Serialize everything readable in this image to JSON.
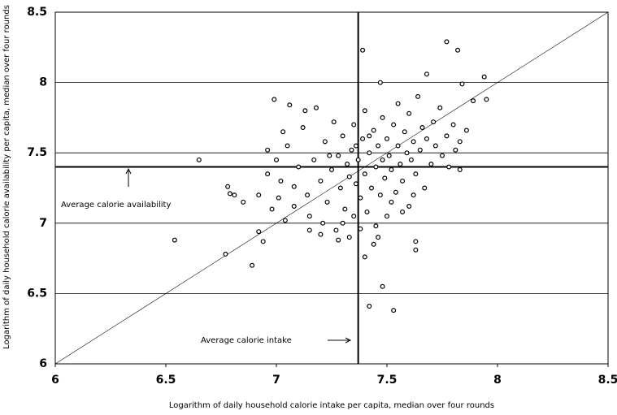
{
  "chart_data": {
    "type": "scatter",
    "x_label": "Logarithm of daily household calorie intake per capita, median over four rounds",
    "y_label": "Logarithm of daily household calorie availability per capita, median over four rounds",
    "annotations": [
      "Average calorie availability",
      "Average calorie intake"
    ],
    "xlim": [
      6,
      8.5
    ],
    "ylim": [
      6,
      8.5
    ],
    "xticks": [
      6,
      6.5,
      7,
      7.5,
      8,
      8.5
    ],
    "yticks": [
      6,
      6.5,
      7,
      7.5,
      8,
      8.5
    ],
    "grid": true,
    "diagonal": true,
    "vline": 7.37,
    "hline": 7.4,
    "color": "#000000",
    "x": [
      6.65,
      6.54,
      6.77,
      6.89,
      6.78,
      6.79,
      6.81,
      6.85,
      6.92,
      6.92,
      6.94,
      6.96,
      6.99,
      7.39,
      7.77,
      7.82,
      7.94,
      7.84,
      7.48,
      7.53,
      7.42,
      7.4,
      7.63,
      7.63,
      7.95,
      7.89,
      7.83,
      7.86,
      7.47,
      7.68,
      7.08,
      7.02,
      7.05,
      7.08,
      7.1,
      7.12,
      7.14,
      7.15,
      7.17,
      7.18,
      7.2,
      7.21,
      7.22,
      7.23,
      7.25,
      7.26,
      7.27,
      7.28,
      7.29,
      7.3,
      7.31,
      7.32,
      7.33,
      7.34,
      7.35,
      7.35,
      7.36,
      7.37,
      7.38,
      7.39,
      7.4,
      7.4,
      7.41,
      7.42,
      7.43,
      7.44,
      7.45,
      7.45,
      7.46,
      7.47,
      7.48,
      7.48,
      7.49,
      7.5,
      7.5,
      7.51,
      7.52,
      7.53,
      7.54,
      7.55,
      7.55,
      7.56,
      7.57,
      7.58,
      7.59,
      7.6,
      7.6,
      7.61,
      7.62,
      7.63,
      7.64,
      7.65,
      7.66,
      7.67,
      7.68,
      7.7,
      7.71,
      7.72,
      7.74,
      7.75,
      7.77,
      7.78,
      7.8,
      7.81,
      7.83,
      7.06,
      7.13,
      7.24,
      7.3,
      7.33,
      7.28,
      7.2,
      7.15,
      7.38,
      7.44,
      7.46,
      7.36,
      7.42,
      7.52,
      7.57,
      7.62,
      7.01,
      7.04,
      6.98,
      6.96,
      7.0,
      7.03
    ],
    "values": [
      7.45,
      6.88,
      6.78,
      6.7,
      7.26,
      7.21,
      7.2,
      7.15,
      7.2,
      6.94,
      6.87,
      7.52,
      7.88,
      8.23,
      8.29,
      8.23,
      8.04,
      7.99,
      6.55,
      6.38,
      6.41,
      6.76,
      6.87,
      6.81,
      7.88,
      7.87,
      7.38,
      7.66,
      8.0,
      8.06,
      7.26,
      7.3,
      7.55,
      7.12,
      7.4,
      7.68,
      7.2,
      7.05,
      7.45,
      7.82,
      7.3,
      7.0,
      7.58,
      7.15,
      7.38,
      7.72,
      6.95,
      7.48,
      7.25,
      7.62,
      7.1,
      7.42,
      7.33,
      7.52,
      7.05,
      7.7,
      7.28,
      7.45,
      7.18,
      7.6,
      7.35,
      7.8,
      7.08,
      7.5,
      7.25,
      7.66,
      7.4,
      6.98,
      7.55,
      7.2,
      7.75,
      7.45,
      7.32,
      7.6,
      7.05,
      7.48,
      7.38,
      7.7,
      7.22,
      7.55,
      7.85,
      7.42,
      7.3,
      7.65,
      7.5,
      7.12,
      7.78,
      7.45,
      7.58,
      7.35,
      7.9,
      7.52,
      7.68,
      7.25,
      7.6,
      7.42,
      7.72,
      7.55,
      7.82,
      7.48,
      7.62,
      7.4,
      7.7,
      7.52,
      7.58,
      7.84,
      7.8,
      7.48,
      7.0,
      6.9,
      6.88,
      6.92,
      6.95,
      6.96,
      6.85,
      6.9,
      7.55,
      7.62,
      7.15,
      7.08,
      7.2,
      7.18,
      7.02,
      7.1,
      7.35,
      7.45,
      7.65
    ]
  }
}
